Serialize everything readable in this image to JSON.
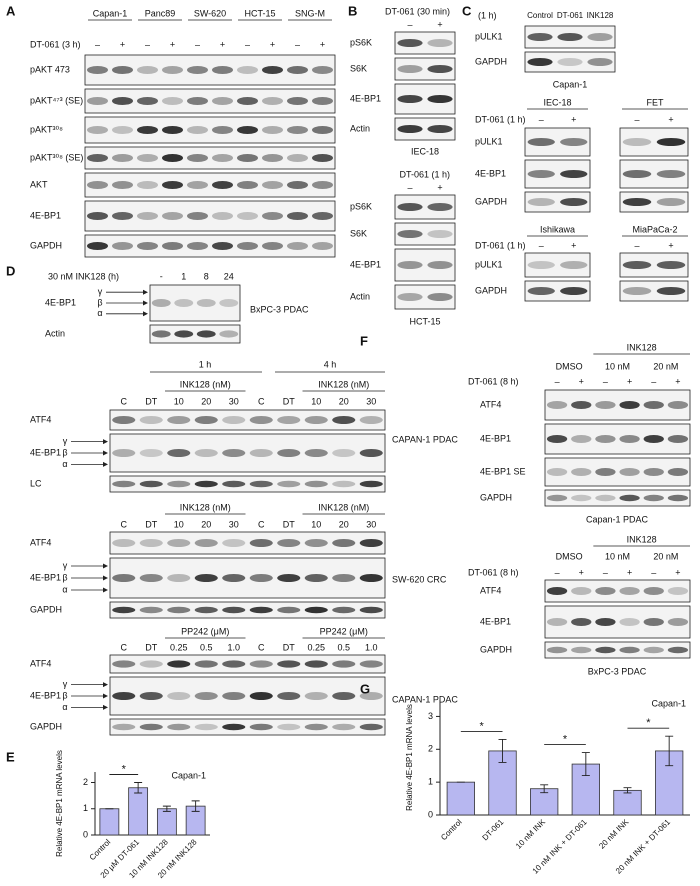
{
  "panels": {
    "A": {
      "letter": "A",
      "cell_lines": [
        "Capan-1",
        "Panc89",
        "SW-620",
        "HCT-15",
        "SNG-M"
      ],
      "treatment": "DT-061 (3 h)",
      "lanes": [
        "–",
        "+",
        "–",
        "+",
        "–",
        "+",
        "–",
        "+",
        "–",
        "+"
      ],
      "rows": [
        "pAKT 473",
        "pAKT⁴⁷³ (SE)",
        "pAKT³⁰⁸",
        "pAKT³⁰⁸ (SE)",
        "AKT",
        "4E-BP1",
        "GAPDH"
      ]
    },
    "B": {
      "letter": "B",
      "blots": [
        {
          "treatment": "DT-061 (30 min)",
          "lanes": [
            "–",
            "+"
          ],
          "rows": [
            "pS6K",
            "S6K",
            "4E-BP1",
            "Actin"
          ],
          "caption": "IEC-18"
        },
        {
          "treatment": "DT-061 (1 h)",
          "lanes": [
            "–",
            "+"
          ],
          "rows": [
            "pS6K",
            "S6K",
            "4E-BP1",
            "Actin"
          ],
          "caption": "HCT-15"
        }
      ]
    },
    "C": {
      "letter": "C",
      "blots": [
        {
          "time": "(1 h)",
          "lanes": [
            "Control",
            "DT-061",
            "INK128"
          ],
          "rows": [
            "pULK1",
            "GAPDH"
          ],
          "caption": "Capan-1"
        },
        {
          "cell_lines": [
            "IEC-18",
            "FET"
          ],
          "treatment": "DT-061 (1 h)",
          "lanes": [
            "–",
            "+",
            "–",
            "+"
          ],
          "rows": [
            "pULK1",
            "4E-BP1",
            "GAPDH"
          ]
        },
        {
          "cell_lines": [
            "Ishikawa",
            "MiaPaCa-2"
          ],
          "treatment": "DT-061 (1 h)",
          "lanes": [
            "–",
            "+",
            "–",
            "+"
          ],
          "rows": [
            "pULK1",
            "GAPDH"
          ]
        }
      ]
    },
    "D": {
      "letter": "D",
      "blots": [
        {
          "treatment": "30 nM INK128 (h)",
          "lanes": [
            "-",
            "1",
            "8",
            "24"
          ],
          "rows": [
            "4E-BP1",
            "Actin"
          ],
          "isoforms": [
            "γ",
            "β",
            "α"
          ],
          "caption": "BxPC-3 PDAC"
        },
        {
          "times": [
            "1 h",
            "4 h"
          ],
          "groups": [
            "INK128 (nM)",
            "INK128 (nM)"
          ],
          "lanes": [
            "C",
            "DT",
            "10",
            "20",
            "30",
            "C",
            "DT",
            "10",
            "20",
            "30"
          ],
          "rows": [
            "ATF4",
            "4E-BP1",
            "LC"
          ],
          "isoforms": [
            "γ",
            "β",
            "α"
          ],
          "caption": "CAPAN-1 PDAC"
        },
        {
          "groups": [
            "INK128 (nM)",
            "INK128 (nM)"
          ],
          "lanes": [
            "C",
            "DT",
            "10",
            "20",
            "30",
            "C",
            "DT",
            "10",
            "20",
            "30"
          ],
          "rows": [
            "ATF4",
            "4E-BP1",
            "GAPDH"
          ],
          "isoforms": [
            "γ",
            "β",
            "α"
          ],
          "caption": "SW-620 CRC"
        },
        {
          "groups": [
            "PP242 (μM)",
            "PP242 (μM)"
          ],
          "lanes": [
            "C",
            "DT",
            "0.25",
            "0.5",
            "1.0",
            "C",
            "DT",
            "0.25",
            "0.5",
            "1.0"
          ],
          "rows": [
            "ATF4",
            "4E-BP1",
            "GAPDH"
          ],
          "isoforms": [
            "γ",
            "β",
            "α"
          ],
          "caption": "CAPAN-1 PDAC"
        }
      ]
    },
    "F": {
      "letter": "F",
      "blots": [
        {
          "header": "INK128",
          "groups": [
            "DMSO",
            "10 nM",
            "20 nM"
          ],
          "treatment": "DT-061 (8 h)",
          "lanes": [
            "–",
            "+",
            "–",
            "+",
            "–",
            "+"
          ],
          "rows": [
            "ATF4",
            "4E-BP1",
            "4E-BP1 SE",
            "GAPDH"
          ],
          "caption": "Capan-1 PDAC"
        },
        {
          "header": "INK128",
          "groups": [
            "DMSO",
            "10 nM",
            "20 nM"
          ],
          "treatment": "DT-061 (8 h)",
          "lanes": [
            "–",
            "+",
            "–",
            "+",
            "–",
            "+"
          ],
          "rows": [
            "ATF4",
            "4E-BP1",
            "GAPDH"
          ],
          "caption": "BxPC-3 PDAC"
        }
      ]
    }
  },
  "chart_data": [
    {
      "type": "bar",
      "letter": "E",
      "ylabel": "Relative 4E-BP1 mRNA levels",
      "annotation": "Capan-1",
      "categories": [
        "Control",
        "20 μM DT-061",
        "10 nM INK128",
        "20 nM INK128"
      ],
      "values": [
        1,
        1.8,
        1.0,
        1.1
      ],
      "errors": [
        0,
        0.2,
        0.1,
        0.2
      ],
      "color": "#b7b7f0",
      "ylim": [
        0,
        2.4
      ],
      "yticks": [
        0,
        1,
        2
      ],
      "significance": [
        {
          "categories": [
            "Control",
            "20 μM DT-061"
          ],
          "label": "*"
        }
      ]
    },
    {
      "type": "bar",
      "letter": "G",
      "ylabel": "Relative 4E-BP1 mRNA levels",
      "annotation": "Capan-1",
      "categories": [
        "Control",
        "DT-061",
        "10 nM INK",
        "10 nM INK + DT-061",
        "20 nM INK",
        "20 nM INK + DT-061"
      ],
      "values": [
        1,
        1.95,
        0.8,
        1.55,
        0.75,
        1.95
      ],
      "errors": [
        0,
        0.35,
        0.12,
        0.35,
        0.08,
        0.45
      ],
      "color": "#b7b7f0",
      "ylim": [
        0,
        3.5
      ],
      "yticks": [
        0,
        1,
        2,
        3
      ],
      "significance": [
        {
          "categories": [
            "Control",
            "DT-061"
          ],
          "label": "*"
        },
        {
          "categories": [
            "10 nM INK",
            "10 nM INK + DT-061"
          ],
          "label": "*"
        },
        {
          "categories": [
            "20 nM INK",
            "20 nM INK + DT-061"
          ],
          "label": "*"
        }
      ]
    }
  ]
}
